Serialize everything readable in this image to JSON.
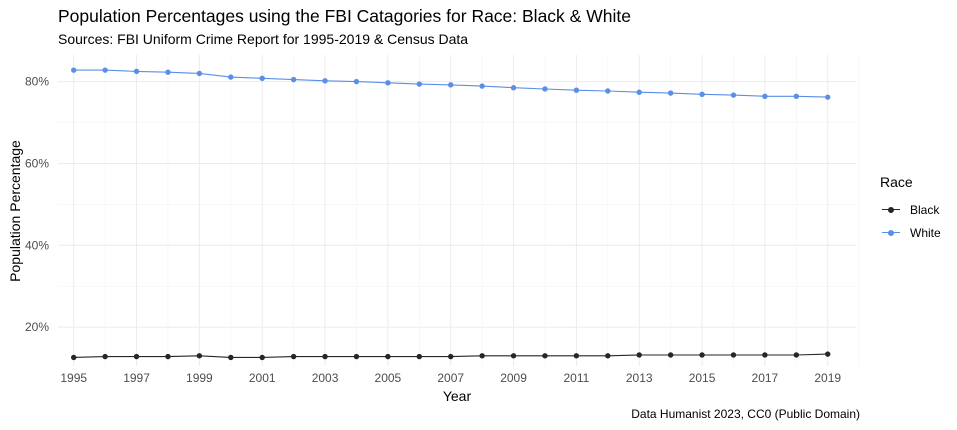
{
  "title": "Population Percentages using the FBI Catagories for Race: Black & White",
  "subtitle": "Sources: FBI Uniform Crime Report for 1995-2019 & Census Data",
  "caption": "Data Humanist 2023, CC0 (Public Domain)",
  "chart_data": {
    "type": "line",
    "xlabel": "Year",
    "ylabel": "Population Percentage",
    "x": [
      1995,
      1996,
      1997,
      1998,
      1999,
      2000,
      2001,
      2002,
      2003,
      2004,
      2005,
      2006,
      2007,
      2008,
      2009,
      2010,
      2011,
      2012,
      2013,
      2014,
      2015,
      2016,
      2017,
      2018,
      2019
    ],
    "xticks": [
      "1995",
      "1997",
      "1999",
      "2001",
      "2003",
      "2005",
      "2007",
      "2009",
      "2011",
      "2013",
      "2015",
      "2017",
      "2019"
    ],
    "yticks": [
      "20%",
      "40%",
      "60%",
      "80%"
    ],
    "ytick_values": [
      20,
      40,
      60,
      80
    ],
    "xlim": [
      1994.5,
      2019.9
    ],
    "ylim": [
      10.5,
      86.5
    ],
    "grid": true,
    "legend_title": "Race",
    "legend_position": "right",
    "series": [
      {
        "name": "Black",
        "color": "#262626",
        "values": [
          12.6,
          12.8,
          12.8,
          12.8,
          13.0,
          12.6,
          12.6,
          12.8,
          12.8,
          12.8,
          12.8,
          12.8,
          12.8,
          13.0,
          13.0,
          13.0,
          13.0,
          13.0,
          13.2,
          13.2,
          13.2,
          13.2,
          13.2,
          13.2,
          13.4
        ]
      },
      {
        "name": "White",
        "color": "#5b8ee6",
        "values": [
          82.8,
          82.8,
          82.5,
          82.3,
          82.0,
          81.1,
          80.8,
          80.5,
          80.2,
          80.0,
          79.7,
          79.4,
          79.2,
          78.9,
          78.5,
          78.2,
          77.9,
          77.7,
          77.4,
          77.2,
          76.9,
          76.7,
          76.4,
          76.4,
          76.2
        ]
      }
    ]
  }
}
